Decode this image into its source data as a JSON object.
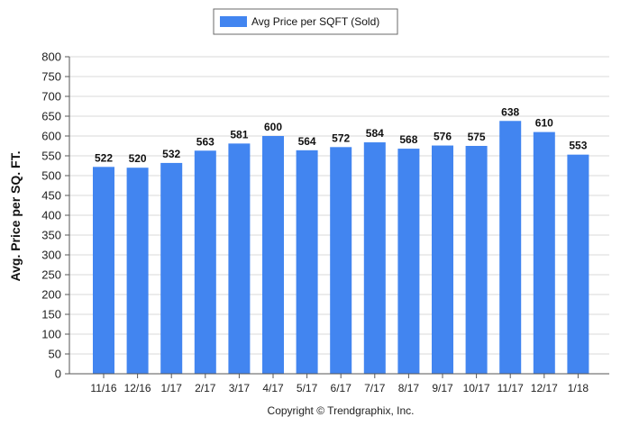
{
  "chart_data": {
    "type": "bar",
    "ylabel": "Avg. Price per SQ. FT.",
    "xlabel": "",
    "ylim": [
      0,
      800
    ],
    "yticks": [
      0,
      50,
      100,
      150,
      200,
      250,
      300,
      350,
      400,
      450,
      500,
      550,
      600,
      650,
      700,
      750,
      800
    ],
    "grid": true,
    "legend_position": "top-center",
    "categories": [
      "11/16",
      "12/16",
      "1/17",
      "2/17",
      "3/17",
      "4/17",
      "5/17",
      "6/17",
      "7/17",
      "8/17",
      "9/17",
      "10/17",
      "11/17",
      "12/17",
      "1/18"
    ],
    "series": [
      {
        "name": "Avg Price per SQFT (Sold)",
        "color": "#4285F0",
        "values": [
          522,
          520,
          532,
          563,
          581,
          600,
          564,
          572,
          584,
          568,
          576,
          575,
          638,
          610,
          553
        ]
      }
    ],
    "data_labels": true
  },
  "footer": {
    "copyright": "Copyright © Trendgraphix, Inc."
  }
}
